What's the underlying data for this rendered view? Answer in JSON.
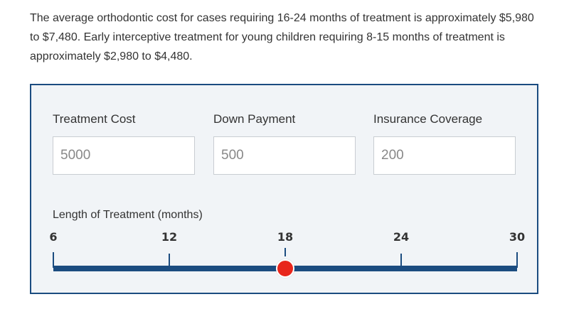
{
  "intro": {
    "text": "The average orthodontic cost for cases requiring 16-24 months of treatment is approximately $5,980 to $7,480. Early interceptive treatment for young children requiring 8-15 months of treatment is approximately $2,980 to $4,480."
  },
  "calculator": {
    "treatment_cost": {
      "label": "Treatment Cost",
      "placeholder": "5000"
    },
    "down_payment": {
      "label": "Down Payment",
      "placeholder": "500"
    },
    "insurance_coverage": {
      "label": "Insurance Coverage",
      "placeholder": "200"
    },
    "length_slider": {
      "label": "Length of Treatment (months)",
      "ticks": [
        "6",
        "12",
        "18",
        "24",
        "30"
      ],
      "min": 6,
      "max": 30,
      "value": 18
    }
  },
  "colors": {
    "accent": "#1b4c80",
    "thumb": "#e8261c",
    "panel_bg": "#f1f4f7"
  }
}
